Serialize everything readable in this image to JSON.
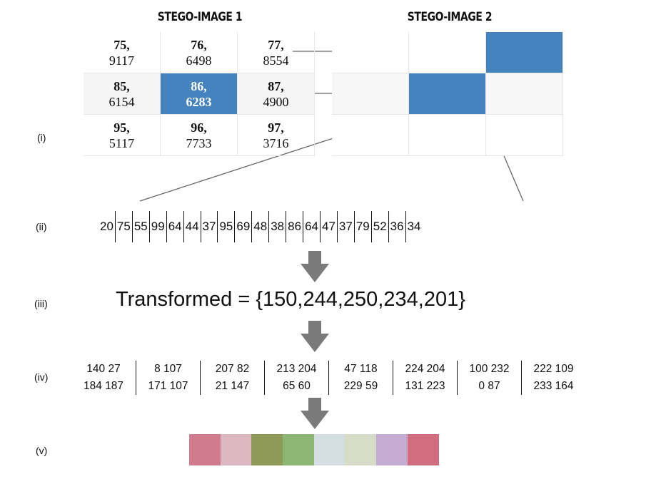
{
  "stego1": {
    "title": "STEGO-IMAGE 1",
    "cells": [
      {
        "k": "75,",
        "v": "9117"
      },
      {
        "k": "76,",
        "v": "6498"
      },
      {
        "k": "77,",
        "v": "8554"
      },
      {
        "k": "85,",
        "v": "6154"
      },
      {
        "k": "86,",
        "v": "6283"
      },
      {
        "k": "87,",
        "v": "4900"
      },
      {
        "k": "95,",
        "v": "5117"
      },
      {
        "k": "96,",
        "v": "7733"
      },
      {
        "k": "97,",
        "v": "3716"
      }
    ]
  },
  "stego2": {
    "title": "STEGO-IMAGE 2"
  },
  "labels": {
    "i": "(i)",
    "ii": "(ii)",
    "iii": "(iii)",
    "iv": "(iv)",
    "v": "(v)"
  },
  "sequence": [
    "20",
    "75",
    "55",
    "99",
    "64",
    "44",
    "37",
    "95",
    "69",
    "48",
    "38",
    "86",
    "64",
    "47",
    "37",
    "79",
    "52",
    "36",
    "34"
  ],
  "transformed": "Transformed = {150,244,250,234,201}",
  "blocks": [
    {
      "line1": "140 27",
      "line2": "184 187"
    },
    {
      "line1": "8 107",
      "line2": "171 107"
    },
    {
      "line1": "207 82",
      "line2": "21 147"
    },
    {
      "line1": "213 204",
      "line2": "65 60"
    },
    {
      "line1": "47 118",
      "line2": "229 59"
    },
    {
      "line1": "224 204",
      "line2": "131 223"
    },
    {
      "line1": "100 232",
      "line2": "0 87"
    },
    {
      "line1": "222 109",
      "line2": "233 164"
    }
  ],
  "colors": {
    "highlight": "#4483bd",
    "arrow": "#7a7a7a",
    "swatches": [
      "#d17b8f",
      "#dcb6c0",
      "#8f9a58",
      "#8db574",
      "#d4dde2",
      "#d6dcc8",
      "#c3abd1",
      "#d06d7f"
    ]
  }
}
